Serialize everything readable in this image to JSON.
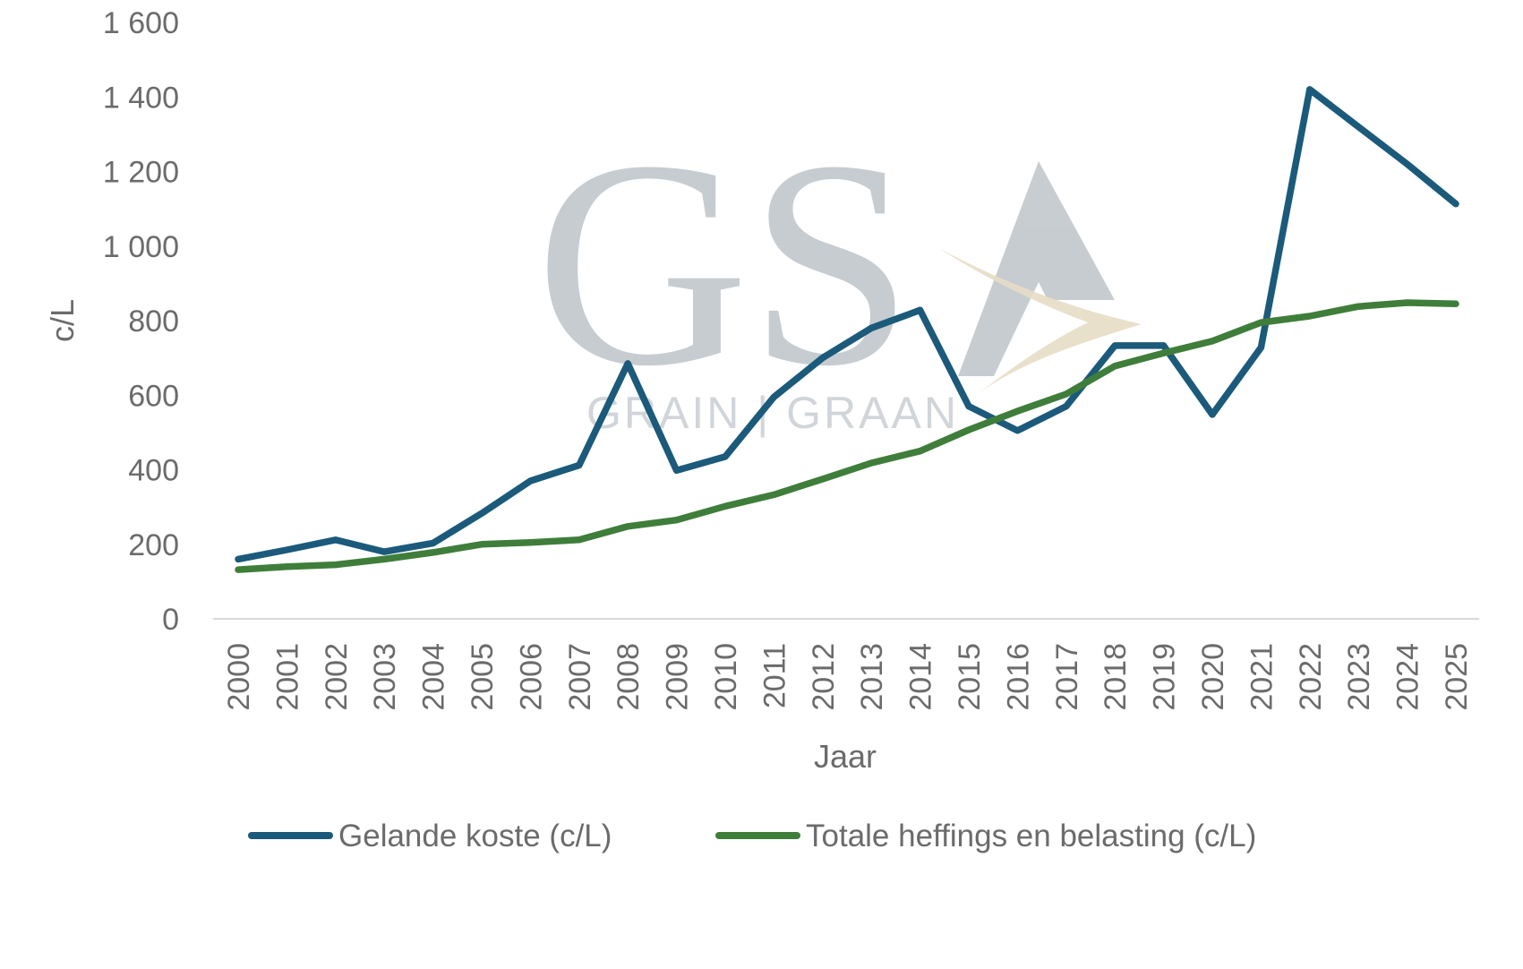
{
  "watermark": {
    "letters": "GS",
    "tagline": "GRAIN | GRAAN",
    "colors": {
      "gray": "#c5cacf",
      "arrow": "#e6dcc3"
    }
  },
  "chart_data": {
    "type": "line",
    "title": "",
    "xlabel": "Jaar",
    "ylabel": "c/L",
    "ylim": [
      0,
      1600
    ],
    "y_ticks": [
      0,
      200,
      400,
      600,
      800,
      1000,
      1200,
      1400,
      1600
    ],
    "y_tick_labels": [
      "0",
      "200",
      "400",
      "600",
      "800",
      "1 000",
      "1 200",
      "1 400",
      "1 600"
    ],
    "grid": false,
    "legend_position": "bottom",
    "categories": [
      "2000",
      "2001",
      "2002",
      "2003",
      "2004",
      "2005",
      "2006",
      "2007",
      "2008",
      "2009",
      "2010",
      "2011",
      "2012",
      "2013",
      "2014",
      "2015",
      "2016",
      "2017",
      "2018",
      "2019",
      "2020",
      "2021",
      "2022",
      "2023",
      "2024",
      "2025"
    ],
    "series": [
      {
        "name": "Gelande koste (c/L)",
        "color": "#1b5a7a",
        "values": [
          160,
          185,
          212,
          180,
          203,
          283,
          370,
          412,
          685,
          398,
          435,
          595,
          700,
          780,
          828,
          570,
          505,
          570,
          733,
          733,
          548,
          728,
          1420,
          1320,
          1220,
          1113
        ]
      },
      {
        "name": "Totale heffings en belasting (c/L)",
        "color": "#3f7e3a",
        "values": [
          132,
          140,
          145,
          160,
          178,
          200,
          205,
          212,
          248,
          265,
          302,
          333,
          375,
          418,
          450,
          507,
          557,
          603,
          678,
          713,
          745,
          795,
          812,
          838,
          848,
          845
        ]
      }
    ]
  }
}
